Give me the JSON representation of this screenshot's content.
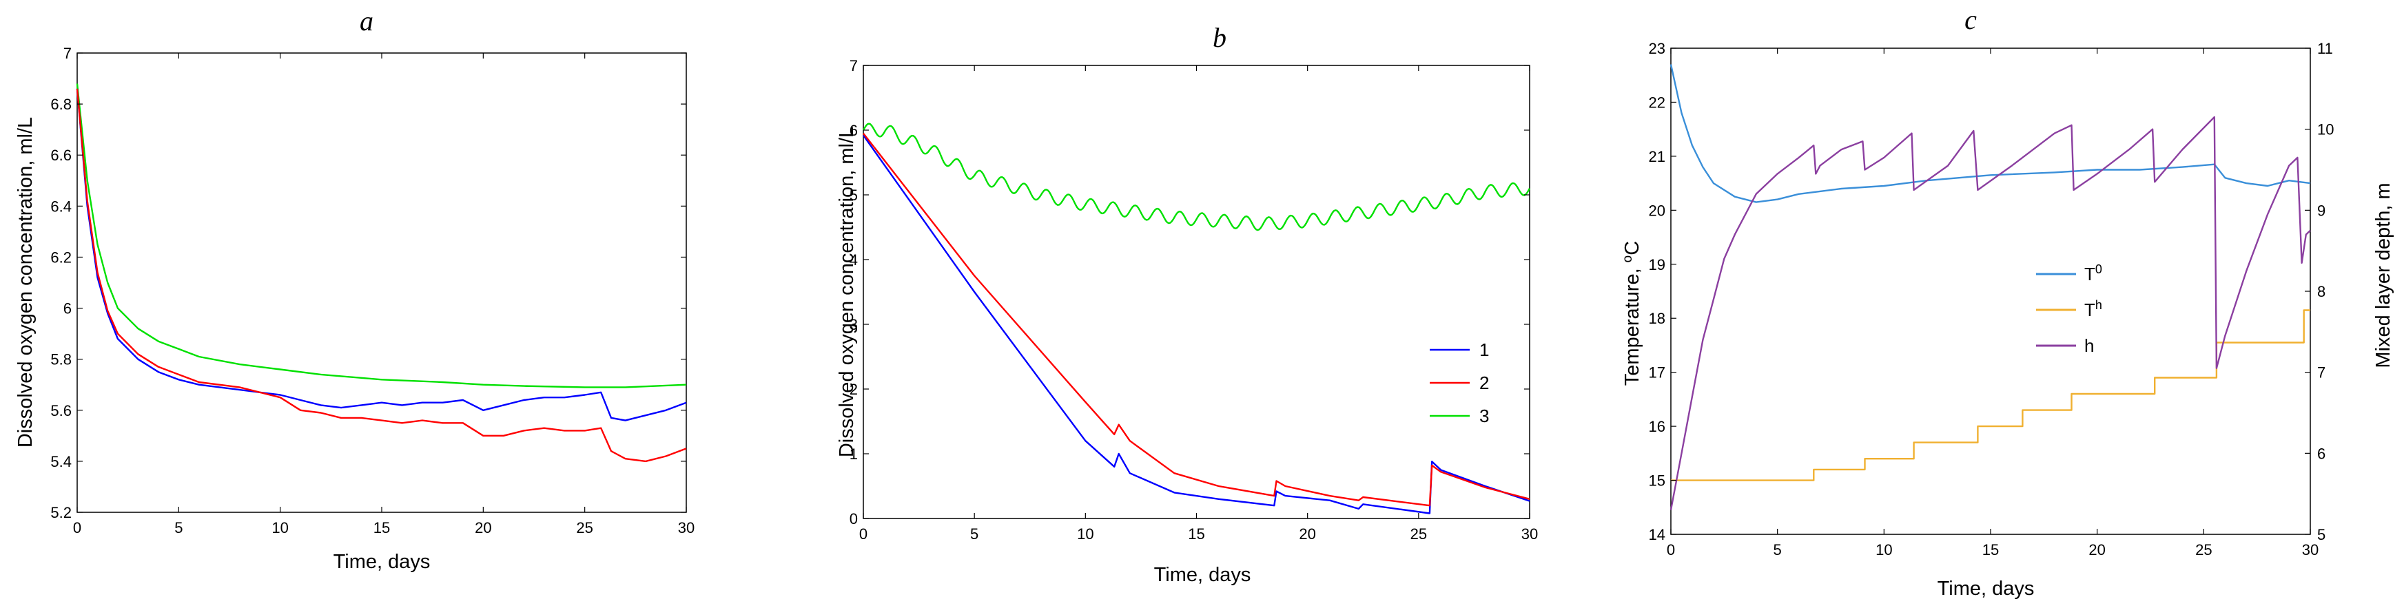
{
  "chart_data": [
    {
      "panel": "a",
      "type": "line",
      "title": "a",
      "xlabel": "Time, days",
      "ylabel": "Dissolved oxygen concentration, ml/L",
      "xlim": [
        0,
        30
      ],
      "ylim": [
        5.2,
        7
      ],
      "xticks": [
        "0",
        "5",
        "10",
        "15",
        "20",
        "25",
        "30"
      ],
      "yticks": [
        "5.2",
        "5.4",
        "5.6",
        "5.8",
        "6",
        "6.2",
        "6.4",
        "6.6",
        "6.8",
        "7"
      ],
      "series": [
        {
          "name": "green",
          "color": "#00e000",
          "x": [
            0,
            0.5,
            1,
            1.5,
            2,
            3,
            4,
            5,
            6,
            8,
            10,
            12,
            15,
            18,
            20,
            22,
            25,
            27,
            30
          ],
          "y": [
            6.88,
            6.5,
            6.25,
            6.1,
            6.0,
            5.92,
            5.87,
            5.84,
            5.81,
            5.78,
            5.76,
            5.74,
            5.72,
            5.71,
            5.7,
            5.695,
            5.69,
            5.69,
            5.7
          ]
        },
        {
          "name": "blue",
          "color": "#0000ff",
          "x": [
            0,
            0.5,
            1,
            1.5,
            2,
            3,
            4,
            5,
            6,
            8,
            10,
            11,
            12,
            13,
            14,
            15,
            16,
            17,
            18,
            19,
            20,
            21,
            22,
            23,
            24,
            25,
            25.8,
            26.3,
            27,
            28,
            29,
            30
          ],
          "y": [
            6.86,
            6.4,
            6.12,
            5.98,
            5.88,
            5.8,
            5.75,
            5.72,
            5.7,
            5.68,
            5.66,
            5.64,
            5.62,
            5.61,
            5.62,
            5.63,
            5.62,
            5.63,
            5.63,
            5.64,
            5.6,
            5.62,
            5.64,
            5.65,
            5.65,
            5.66,
            5.67,
            5.57,
            5.56,
            5.58,
            5.6,
            5.63
          ]
        },
        {
          "name": "red",
          "color": "#ff0000",
          "x": [
            0,
            0.5,
            1,
            1.5,
            2,
            3,
            4,
            5,
            6,
            8,
            10,
            11,
            12,
            13,
            14,
            15,
            16,
            17,
            18,
            19,
            20,
            21,
            22,
            23,
            24,
            25,
            25.8,
            26.3,
            27,
            28,
            29,
            30
          ],
          "y": [
            6.86,
            6.42,
            6.14,
            5.99,
            5.9,
            5.82,
            5.77,
            5.74,
            5.71,
            5.69,
            5.65,
            5.6,
            5.59,
            5.57,
            5.57,
            5.56,
            5.55,
            5.56,
            5.55,
            5.55,
            5.5,
            5.5,
            5.52,
            5.53,
            5.52,
            5.52,
            5.53,
            5.44,
            5.41,
            5.4,
            5.42,
            5.45
          ]
        }
      ]
    },
    {
      "panel": "b",
      "type": "line",
      "title": "b",
      "xlabel": "Time, days",
      "ylabel": "Dissolved oxygen concentration, ml/L",
      "xlim": [
        0,
        30
      ],
      "ylim": [
        0,
        7
      ],
      "xticks": [
        "0",
        "5",
        "10",
        "15",
        "20",
        "25",
        "30"
      ],
      "yticks": [
        "0",
        "1",
        "2",
        "3",
        "4",
        "5",
        "6",
        "7"
      ],
      "legend": {
        "position": "right",
        "entries": [
          "1",
          "2",
          "3"
        ]
      },
      "series": [
        {
          "name": "1",
          "color": "#0000ff",
          "x": [
            0,
            5,
            10,
            11.3,
            11.5,
            12,
            14,
            16,
            18.5,
            18.6,
            19,
            21,
            22.3,
            22.5,
            25.5,
            25.6,
            26,
            28,
            30
          ],
          "y": [
            5.92,
            3.5,
            1.2,
            0.8,
            1.0,
            0.7,
            0.4,
            0.3,
            0.2,
            0.42,
            0.35,
            0.28,
            0.15,
            0.22,
            0.08,
            0.88,
            0.75,
            0.5,
            0.27
          ]
        },
        {
          "name": "2",
          "color": "#ff0000",
          "x": [
            0,
            5,
            10,
            11.3,
            11.5,
            12,
            14,
            16,
            18.5,
            18.6,
            19,
            21,
            22.3,
            22.5,
            25.5,
            25.6,
            26,
            28,
            30
          ],
          "y": [
            5.95,
            3.75,
            1.8,
            1.3,
            1.45,
            1.2,
            0.7,
            0.5,
            0.35,
            0.58,
            0.5,
            0.35,
            0.28,
            0.33,
            0.2,
            0.82,
            0.72,
            0.48,
            0.3
          ]
        },
        {
          "name": "3",
          "color": "#00e000",
          "x": [
            0,
            1,
            3,
            5,
            8,
            10,
            12,
            14,
            16,
            18,
            20,
            22,
            24,
            26,
            28,
            30
          ],
          "y": [
            6.0,
            6.0,
            5.7,
            5.3,
            5.0,
            4.85,
            4.75,
            4.65,
            4.6,
            4.55,
            4.6,
            4.7,
            4.8,
            4.9,
            5.05,
            5.1
          ],
          "oscillation": 0.2
        }
      ]
    },
    {
      "panel": "c",
      "type": "line",
      "title": "c",
      "xlabel": "Time, days",
      "ylabel": "Temperature, °C",
      "ylabel_base": "Temperature,",
      "ylabel_sup": "o",
      "ylabel_unit": "C",
      "y2label": "Mixed layer depth, m",
      "xlim": [
        0,
        30
      ],
      "ylim": [
        14,
        23
      ],
      "y2lim": [
        5,
        11
      ],
      "xticks": [
        "0",
        "5",
        "10",
        "15",
        "20",
        "25",
        "30"
      ],
      "yticks": [
        "14",
        "15",
        "16",
        "17",
        "18",
        "19",
        "20",
        "21",
        "22",
        "23"
      ],
      "y2ticks": [
        "5",
        "6",
        "7",
        "8",
        "9",
        "10",
        "11"
      ],
      "legend": {
        "position": "center-right",
        "entries": [
          {
            "base": "T",
            "sup": "0"
          },
          {
            "base": "T",
            "sup": "h"
          },
          {
            "base": "h",
            "sup": ""
          }
        ]
      },
      "series": [
        {
          "name": "T0",
          "color": "#3a8fd9",
          "axis": "left",
          "x": [
            0,
            0.5,
            1,
            1.5,
            2,
            3,
            4,
            5,
            6,
            7,
            8,
            10,
            12,
            15,
            18,
            20,
            22,
            24,
            25.5,
            26,
            27,
            28,
            29,
            30
          ],
          "y": [
            22.7,
            21.8,
            21.2,
            20.8,
            20.5,
            20.25,
            20.15,
            20.2,
            20.3,
            20.35,
            20.4,
            20.45,
            20.55,
            20.65,
            20.7,
            20.75,
            20.75,
            20.8,
            20.85,
            20.6,
            20.5,
            20.45,
            20.55,
            20.5
          ]
        },
        {
          "name": "Th",
          "color": "#f0b030",
          "axis": "left",
          "x": [
            0,
            6.7,
            6.7,
            9.1,
            9.1,
            11.4,
            11.4,
            14.4,
            14.4,
            16.5,
            16.5,
            18.8,
            18.8,
            22.7,
            22.7,
            25.6,
            25.6,
            29.7,
            29.7,
            30
          ],
          "y": [
            15.0,
            15.0,
            15.2,
            15.2,
            15.4,
            15.4,
            15.7,
            15.7,
            16.0,
            16.0,
            16.3,
            16.3,
            16.6,
            16.6,
            16.9,
            16.9,
            17.55,
            17.55,
            18.15,
            18.15
          ]
        },
        {
          "name": "h",
          "color": "#8b3fa0",
          "axis": "right",
          "x": [
            0,
            0.5,
            1,
            1.5,
            2,
            2.5,
            3,
            4,
            5,
            6,
            6.7,
            6.8,
            7,
            8,
            9.0,
            9.1,
            10,
            11.3,
            11.4,
            13,
            14.2,
            14.4,
            16,
            18,
            18.8,
            18.9,
            20,
            21.5,
            22.6,
            22.7,
            24,
            25.5,
            25.6,
            26,
            27,
            28,
            29,
            29.4,
            29.6,
            29.8,
            30
          ],
          "y": [
            5.3,
            6.0,
            6.7,
            7.4,
            7.9,
            8.4,
            8.7,
            9.2,
            9.45,
            9.65,
            9.8,
            9.45,
            9.55,
            9.75,
            9.85,
            9.5,
            9.65,
            9.95,
            9.25,
            9.55,
            9.98,
            9.25,
            9.55,
            9.95,
            10.05,
            9.25,
            9.45,
            9.75,
            10.0,
            9.35,
            9.75,
            10.15,
            7.05,
            7.45,
            8.25,
            8.95,
            9.55,
            9.65,
            8.35,
            8.7,
            8.75
          ]
        }
      ]
    }
  ]
}
